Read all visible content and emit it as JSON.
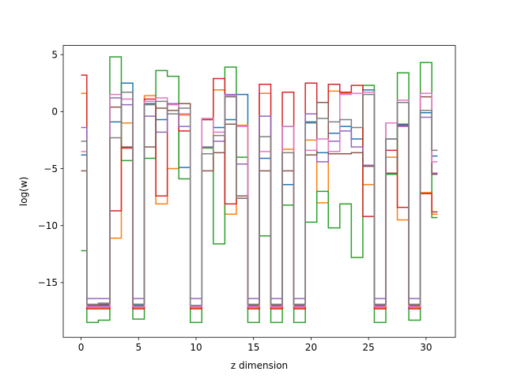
{
  "chart_data": {
    "type": "line",
    "step": "mid",
    "xlabel": "z dimension",
    "ylabel": "log(w)",
    "xlim": [
      -1.55,
      32.55
    ],
    "ylim": [
      -19.8,
      5.8
    ],
    "xticks": [
      0,
      5,
      10,
      15,
      20,
      25,
      30
    ],
    "yticks": [
      5,
      0,
      -5,
      -10,
      -15
    ],
    "x": [
      0,
      1,
      2,
      3,
      4,
      5,
      6,
      7,
      8,
      9,
      10,
      11,
      12,
      13,
      14,
      15,
      16,
      17,
      18,
      19,
      20,
      21,
      22,
      23,
      24,
      25,
      26,
      27,
      28,
      29,
      30,
      31
    ],
    "series": [
      {
        "color": "#1f77b4",
        "values": [
          -3.8,
          -17.0,
          -17.0,
          -0.9,
          2.5,
          -17.0,
          0.7,
          -0.7,
          -0.2,
          -4.9,
          -17.0,
          -0.7,
          -1.4,
          -0.7,
          1.5,
          -17.0,
          -4.1,
          -17.0,
          -6.4,
          -17.0,
          -0.9,
          -3.6,
          -1.9,
          -1.3,
          -2.4,
          1.9,
          -17.0,
          -2.4,
          -1.1,
          -17.0,
          -0.1,
          -3.9
        ]
      },
      {
        "color": "#ff7f0e",
        "values": [
          1.6,
          -17.2,
          -17.2,
          -11.1,
          -1.0,
          -17.2,
          1.4,
          -8.1,
          -5.0,
          -0.3,
          -17.2,
          -3.1,
          1.9,
          -9.0,
          -1.2,
          -17.2,
          1.6,
          -17.2,
          -3.3,
          -17.2,
          -2.5,
          -8.0,
          1.8,
          1.6,
          1.6,
          -6.4,
          -17.2,
          -4.0,
          -9.5,
          -17.2,
          -7.1,
          -9.0
        ]
      },
      {
        "color": "#2ca02c",
        "values": [
          -12.2,
          -18.5,
          -18.3,
          4.8,
          -4.3,
          -18.2,
          -4.1,
          3.6,
          3.1,
          -5.9,
          -18.5,
          -3.2,
          -11.6,
          3.9,
          -4.0,
          -18.5,
          -10.9,
          -18.5,
          -8.2,
          -18.5,
          -9.7,
          -7.0,
          -10.2,
          -8.1,
          -12.8,
          2.3,
          -18.5,
          -5.5,
          3.4,
          -18.3,
          4.3,
          -9.3
        ]
      },
      {
        "color": "#d62728",
        "values": [
          3.2,
          -17.3,
          -17.3,
          -8.7,
          -3.2,
          -17.3,
          1.1,
          -7.4,
          0.7,
          -1.7,
          -17.3,
          -0.7,
          2.9,
          -8.1,
          -7.6,
          -17.3,
          2.4,
          -17.3,
          1.7,
          -17.3,
          2.5,
          0.8,
          2.4,
          1.7,
          2.3,
          -9.2,
          -17.3,
          -3.4,
          -8.4,
          -17.3,
          -7.2,
          -8.8
        ]
      },
      {
        "color": "#9467bd",
        "values": [
          -1.4,
          -16.4,
          -16.4,
          1.2,
          0.6,
          -16.4,
          -0.4,
          -1.8,
          0.7,
          -1.3,
          -16.4,
          -3.1,
          -2.6,
          1.5,
          -4.6,
          -16.4,
          -0.4,
          -16.4,
          -1.3,
          -16.4,
          -0.2,
          -4.4,
          -2.6,
          -1.7,
          -3.1,
          -4.7,
          -16.4,
          -1.0,
          -1.3,
          -16.4,
          -0.5,
          -5.4
        ]
      },
      {
        "color": "#8c564b",
        "values": [
          -5.2,
          -17.0,
          -16.9,
          0.4,
          -3.1,
          -16.9,
          -3.1,
          0.3,
          0.1,
          0.7,
          -17.0,
          -5.2,
          -3.6,
          -1.1,
          -7.4,
          -17.0,
          -5.2,
          -17.0,
          -5.2,
          -17.0,
          -3.8,
          0.8,
          -3.7,
          -3.7,
          -3.6,
          -4.8,
          -17.0,
          -5.4,
          -1.2,
          -17.0,
          1.3,
          -5.5
        ]
      },
      {
        "color": "#e377c2",
        "values": [
          -3.5,
          -17.1,
          -17.1,
          1.5,
          1.1,
          -17.1,
          0.9,
          1.2,
          0.6,
          -0.2,
          -17.1,
          -0.6,
          -1.8,
          1.4,
          -1.3,
          -17.1,
          -3.5,
          -17.1,
          -1.3,
          -17.1,
          -3.4,
          -2.4,
          -3.5,
          1.5,
          1.6,
          1.7,
          -17.1,
          -1.0,
          1.0,
          -17.1,
          1.6,
          -4.4
        ]
      },
      {
        "color": "#7f7f7f",
        "values": [
          -2.6,
          -16.9,
          -16.8,
          -2.3,
          1.7,
          -16.9,
          0.6,
          0.9,
          -0.2,
          0.3,
          -17.0,
          -3.7,
          -2.1,
          1.3,
          -7.6,
          -16.9,
          -2.2,
          -16.9,
          -3.6,
          -16.9,
          -1.0,
          -0.6,
          -0.9,
          -0.7,
          -1.4,
          1.5,
          -16.9,
          -2.4,
          0.8,
          -16.9,
          0.1,
          -3.4
        ]
      }
    ]
  }
}
